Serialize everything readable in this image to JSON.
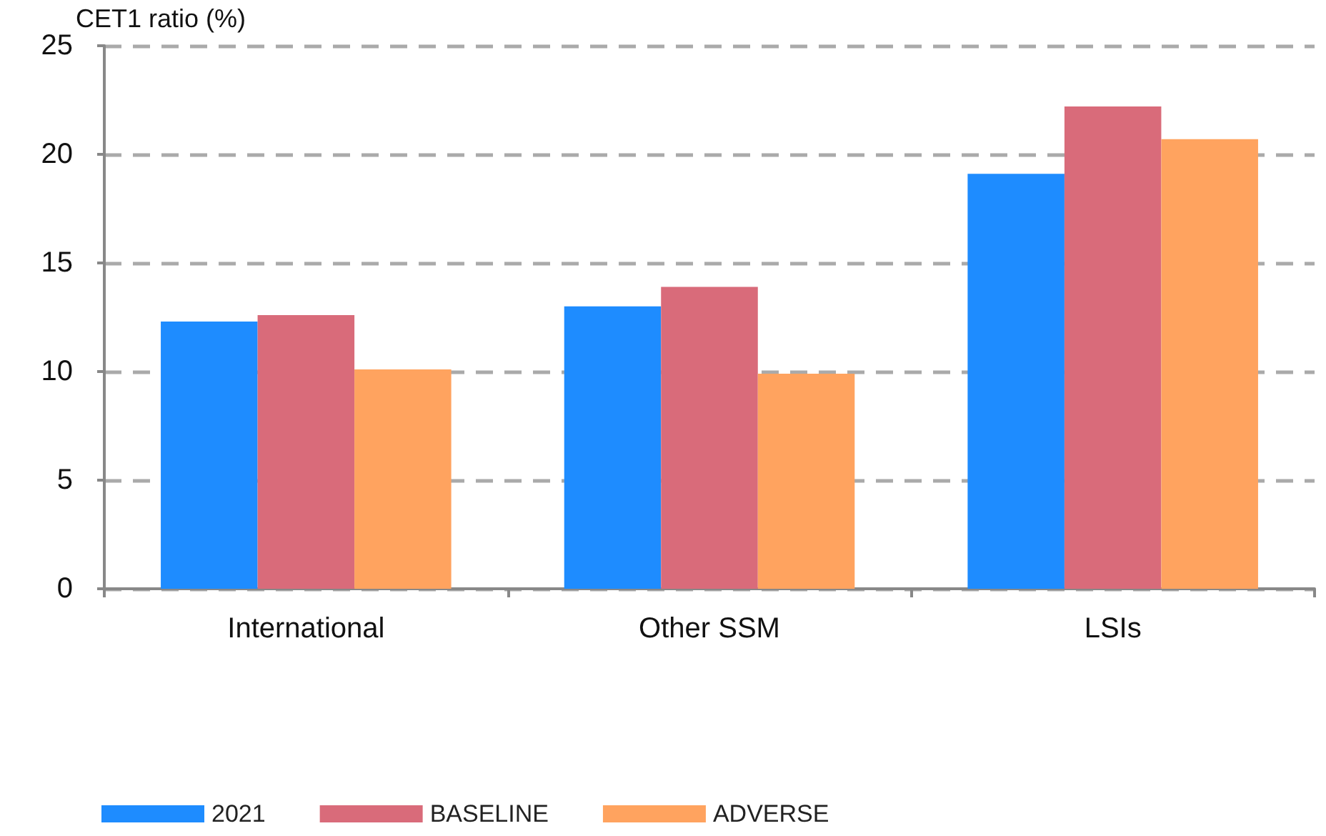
{
  "chart_data": {
    "type": "bar",
    "ylabel": "CET1 ratio (%)",
    "categories": [
      "International",
      "Other SSM",
      "LSIs"
    ],
    "series": [
      {
        "name": "2021",
        "color": "#1e8cff",
        "values": [
          12.3,
          13.0,
          19.1
        ]
      },
      {
        "name": "BASELINE",
        "color": "#d96b7a",
        "values": [
          12.6,
          13.9,
          22.2
        ]
      },
      {
        "name": "ADVERSE",
        "color": "#ffa35f",
        "values": [
          10.1,
          9.9,
          20.7
        ]
      }
    ],
    "ylim": [
      0,
      25
    ],
    "yticks": [
      0,
      5,
      10,
      15,
      20,
      25
    ],
    "grid": "y",
    "legend": "bottom left"
  }
}
